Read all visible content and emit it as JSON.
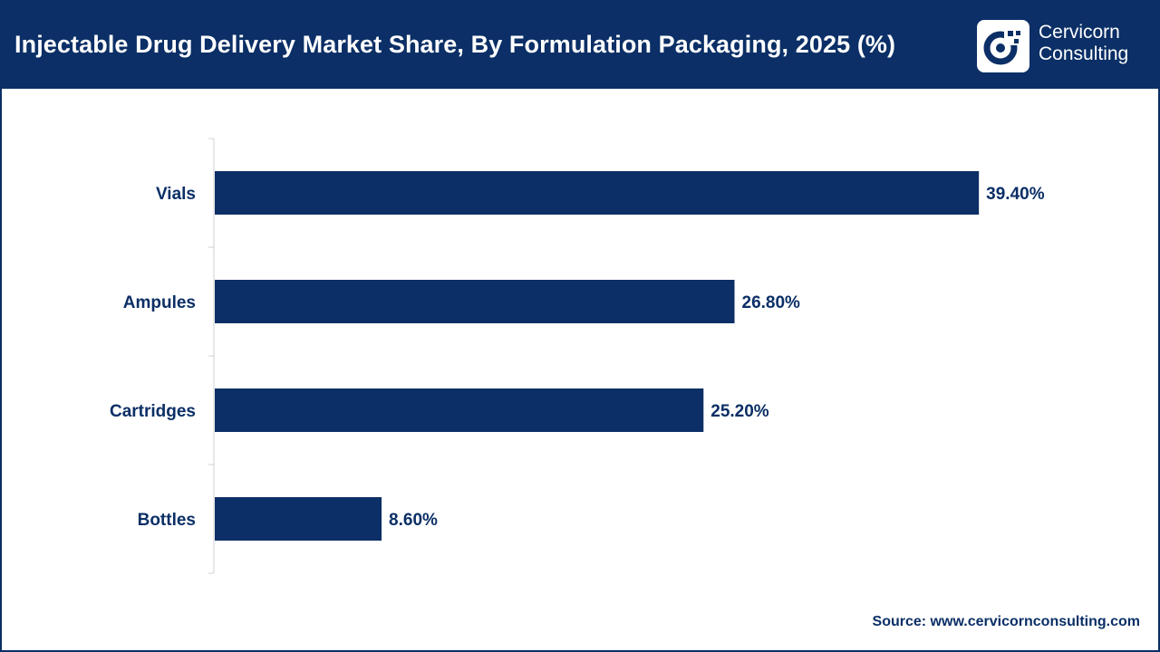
{
  "header": {
    "title": "Injectable Drug Delivery Market Share, By Formulation Packaging, 2025 (%)",
    "brand_line1": "Cervicorn",
    "brand_line2": "Consulting"
  },
  "footer": {
    "source": "Source: www.cervicornconsulting.com"
  },
  "colors": {
    "bar": "#0b2f66",
    "header_bg": "#0b2f66"
  },
  "chart_data": {
    "type": "bar",
    "orientation": "horizontal",
    "title": "Injectable Drug Delivery Market Share, By Formulation Packaging, 2025 (%)",
    "categories": [
      "Vials",
      "Ampules",
      "Cartridges",
      "Bottles"
    ],
    "values": [
      39.4,
      26.8,
      25.2,
      8.6
    ],
    "value_labels": [
      "39.40%",
      "26.80%",
      "25.20%",
      "8.60%"
    ],
    "xlim": [
      0,
      50
    ],
    "grid": false,
    "legend": "none"
  }
}
